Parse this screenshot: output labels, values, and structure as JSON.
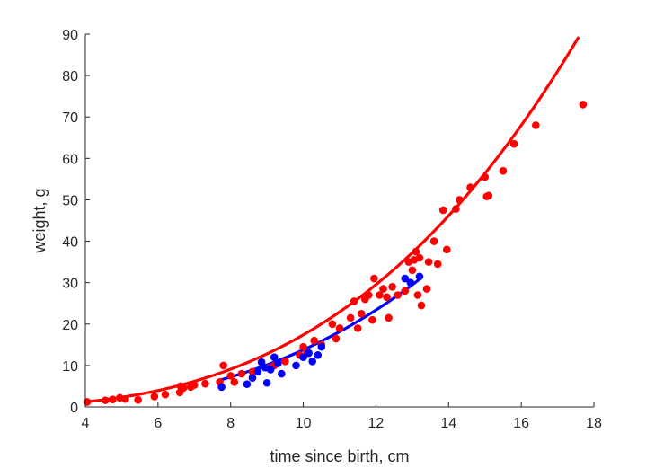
{
  "chart_data": {
    "type": "scatter",
    "title": "",
    "xlabel": "time since birth, cm",
    "ylabel": "weight, g",
    "xlim": [
      4,
      18
    ],
    "ylim": [
      0,
      90
    ],
    "xticks": [
      4,
      6,
      8,
      10,
      12,
      14,
      16,
      18
    ],
    "yticks": [
      0,
      10,
      20,
      30,
      40,
      50,
      60,
      70,
      80,
      90
    ],
    "grid": false,
    "legend": "none",
    "series": [
      {
        "name": "red",
        "color": "#ff0000",
        "points": [
          [
            4.05,
            1.2
          ],
          [
            4.55,
            1.6
          ],
          [
            4.75,
            1.8
          ],
          [
            4.95,
            2.2
          ],
          [
            5.1,
            1.9
          ],
          [
            5.45,
            1.7
          ],
          [
            5.9,
            2.5
          ],
          [
            6.2,
            3.0
          ],
          [
            6.6,
            3.5
          ],
          [
            6.62,
            5.0
          ],
          [
            6.7,
            4.6
          ],
          [
            6.9,
            4.8
          ],
          [
            7.0,
            5.3
          ],
          [
            7.3,
            5.6
          ],
          [
            7.7,
            6.0
          ],
          [
            7.8,
            10.0
          ],
          [
            8.0,
            7.5
          ],
          [
            8.1,
            6.0
          ],
          [
            8.3,
            8.0
          ],
          [
            8.6,
            8.5
          ],
          [
            9.0,
            9.5
          ],
          [
            9.2,
            10.0
          ],
          [
            9.5,
            11.0
          ],
          [
            9.9,
            12.5
          ],
          [
            10.0,
            14.5
          ],
          [
            10.1,
            13.0
          ],
          [
            10.3,
            16.0
          ],
          [
            10.5,
            15.0
          ],
          [
            10.8,
            20.0
          ],
          [
            10.9,
            16.5
          ],
          [
            11.0,
            19.0
          ],
          [
            11.3,
            21.5
          ],
          [
            11.4,
            25.5
          ],
          [
            11.5,
            19.0
          ],
          [
            11.6,
            22.5
          ],
          [
            11.7,
            26.0
          ],
          [
            11.8,
            27.0
          ],
          [
            11.9,
            21.0
          ],
          [
            11.95,
            31.0
          ],
          [
            12.1,
            27.0
          ],
          [
            12.2,
            28.5
          ],
          [
            12.3,
            26.5
          ],
          [
            12.35,
            21.5
          ],
          [
            12.45,
            29.0
          ],
          [
            12.6,
            27.0
          ],
          [
            12.8,
            28.0
          ],
          [
            12.9,
            35.0
          ],
          [
            13.0,
            33.0
          ],
          [
            13.05,
            35.5
          ],
          [
            13.1,
            37.5
          ],
          [
            13.15,
            27.0
          ],
          [
            13.2,
            36.0
          ],
          [
            13.25,
            24.5
          ],
          [
            13.4,
            28.5
          ],
          [
            13.45,
            35.0
          ],
          [
            13.6,
            40.0
          ],
          [
            13.7,
            34.5
          ],
          [
            13.85,
            47.5
          ],
          [
            13.95,
            38.0
          ],
          [
            14.2,
            47.8
          ],
          [
            14.3,
            50.0
          ],
          [
            14.6,
            53.0
          ],
          [
            15.0,
            55.5
          ],
          [
            15.05,
            50.8
          ],
          [
            15.1,
            51.0
          ],
          [
            15.5,
            57.0
          ],
          [
            15.8,
            63.5
          ],
          [
            16.4,
            68.0
          ],
          [
            17.7,
            73.0
          ]
        ],
        "fit": {
          "a": 0.0219,
          "b": 2.9,
          "x_start": 4.0,
          "x_end": 17.7
        }
      },
      {
        "name": "blue",
        "color": "#0000ff",
        "points": [
          [
            7.75,
            4.8
          ],
          [
            8.45,
            5.5
          ],
          [
            8.6,
            7.0
          ],
          [
            8.75,
            8.5
          ],
          [
            8.85,
            10.8
          ],
          [
            8.95,
            9.5
          ],
          [
            9.0,
            5.8
          ],
          [
            9.1,
            9.0
          ],
          [
            9.2,
            12.0
          ],
          [
            9.3,
            10.5
          ],
          [
            9.4,
            8.0
          ],
          [
            9.8,
            10.0
          ],
          [
            10.0,
            12.0
          ],
          [
            10.15,
            13.0
          ],
          [
            10.25,
            11.0
          ],
          [
            10.4,
            12.5
          ],
          [
            10.5,
            14.5
          ],
          [
            12.8,
            31.0
          ],
          [
            12.95,
            30.0
          ],
          [
            13.2,
            31.5
          ]
        ],
        "fit": {
          "a": 0.01735,
          "b": 2.9,
          "x_start": 7.75,
          "x_end": 13.2
        }
      }
    ]
  }
}
